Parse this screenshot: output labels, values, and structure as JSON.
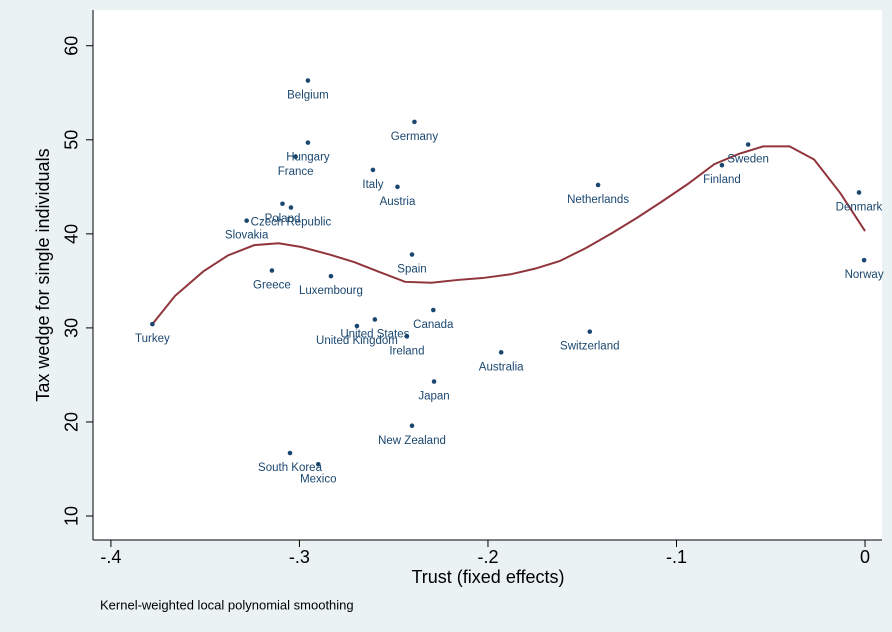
{
  "chart_data": {
    "type": "scatter",
    "x_label": "Trust (fixed effects)",
    "y_label": "Tax wedge for single individuals",
    "note": "Kernel-weighted local polynomial smoothing",
    "labels": [
      "Turkey",
      "Belgium",
      "Germany",
      "Hungary",
      "France",
      "Italy",
      "Austria",
      "Poland",
      "Czech Republic",
      "Slovakia",
      "Greece",
      "Luxembourg",
      "Spain",
      "Canada",
      "United States",
      "United Kingdom",
      "Ireland",
      "Australia",
      "Switzerland",
      "Japan",
      "New Zealand",
      "South Korea",
      "Mexico",
      "Netherlands",
      "Finland",
      "Sweden",
      "Denmark",
      "Norway"
    ],
    "x": [
      -0.378,
      -0.2955,
      -0.239,
      -0.2955,
      -0.302,
      -0.261,
      -0.248,
      -0.309,
      -0.3045,
      -0.328,
      -0.3146,
      -0.2833,
      -0.2403,
      -0.229,
      -0.26,
      -0.2695,
      -0.243,
      -0.193,
      -0.146,
      -0.2286,
      -0.2403,
      -0.305,
      -0.29,
      -0.1416,
      -0.0759,
      -0.062,
      -0.0032,
      -0.0005
    ],
    "y": [
      30.4,
      56.3,
      51.9,
      49.7,
      48.2,
      46.8,
      45.0,
      43.2,
      42.8,
      41.4,
      36.1,
      35.5,
      37.8,
      31.9,
      30.9,
      30.2,
      29.1,
      27.4,
      29.6,
      24.3,
      19.6,
      16.7,
      15.5,
      45.2,
      47.3,
      49.5,
      44.4,
      37.2
    ],
    "marker_color": "#1a476f",
    "smooth": {
      "color": "#90353b",
      "x": [
        -0.378,
        -0.366,
        -0.351,
        -0.338,
        -0.324,
        -0.311,
        -0.299,
        -0.284,
        -0.271,
        -0.257,
        -0.244,
        -0.23,
        -0.216,
        -0.203,
        -0.188,
        -0.175,
        -0.162,
        -0.148,
        -0.134,
        -0.121,
        -0.108,
        -0.094,
        -0.08,
        -0.067,
        -0.054,
        -0.04,
        -0.027,
        -0.013,
        0
      ],
      "y": [
        30.4,
        33.4,
        36.0,
        37.7,
        38.8,
        39.0,
        38.6,
        37.8,
        37.0,
        35.9,
        34.9,
        34.8,
        35.1,
        35.3,
        35.7,
        36.3,
        37.1,
        38.5,
        40.1,
        41.7,
        43.4,
        45.3,
        47.4,
        48.5,
        49.3,
        49.3,
        47.9,
        44.3,
        40.3
      ]
    },
    "xlim": [
      -0.4095,
      0.009
    ],
    "ylim": [
      7.45,
      63.8
    ],
    "xticks": [
      {
        "value": -0.4,
        "label": "-.4"
      },
      {
        "value": -0.3,
        "label": "-.3"
      },
      {
        "value": -0.2,
        "label": "-.2"
      },
      {
        "value": -0.1,
        "label": "-.1"
      },
      0
    ],
    "yticks": [
      10,
      20,
      30,
      40,
      50,
      60
    ]
  }
}
